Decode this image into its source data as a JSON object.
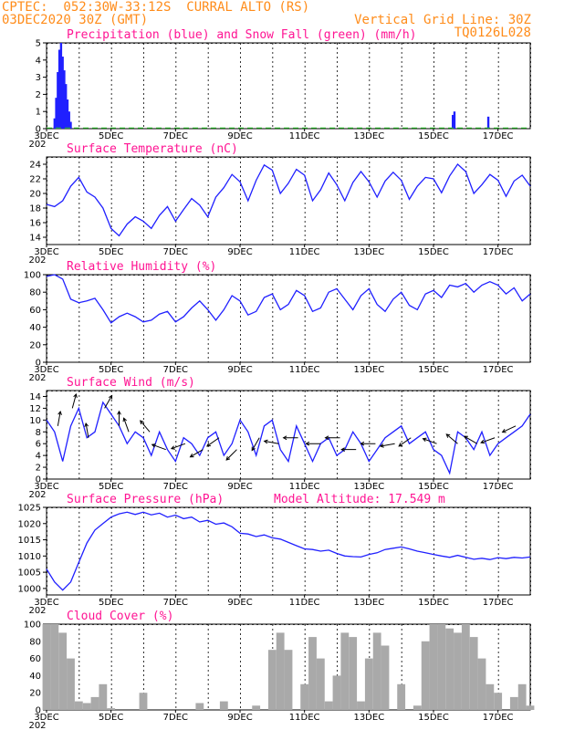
{
  "header": {
    "line1_left": "CPTEC:  052:30W-33:12S  CURRAL ALTO (RS)",
    "line2_left": "03DEC2020 30Z (GMT)",
    "line2_right": "Vertical Grid Line: 30Z",
    "line3_right": "TQ0126L028"
  },
  "x_axis": {
    "range_days": [
      3,
      18
    ],
    "tick_labels": [
      "3DEC",
      "5DEC",
      "7DEC",
      "9DEC",
      "11DEC",
      "13DEC",
      "15DEC",
      "17DEC"
    ],
    "tick_days": [
      3,
      5,
      7,
      9,
      11,
      13,
      15,
      17
    ],
    "year_stub": "202"
  },
  "colors": {
    "line": "#2020ff",
    "precip": "#2020ff",
    "snow": "#20c020",
    "cloud": "#a9a9a9",
    "arrow": "#000000",
    "title": "#ff1493",
    "header": "#ff8c1a"
  },
  "chart_data": [
    {
      "id": "precip",
      "type": "bar",
      "title": "Precipitation (blue) and Snow Fall (green) (mm/h)",
      "ylim": [
        0,
        5
      ],
      "yticks": [
        0,
        1,
        2,
        3,
        4,
        5
      ],
      "series": [
        {
          "name": "Precipitation",
          "x": [
            3.25,
            3.3,
            3.35,
            3.4,
            3.45,
            3.5,
            3.55,
            3.6,
            3.65,
            3.7,
            3.75,
            15.6,
            15.65,
            16.7
          ],
          "values": [
            0.6,
            1.8,
            3.3,
            4.6,
            5.0,
            4.2,
            3.4,
            2.6,
            1.7,
            1.0,
            0.4,
            0.8,
            1.0,
            0.7
          ]
        }
      ]
    },
    {
      "id": "temp",
      "type": "line",
      "title": "Surface Temperature (nC)",
      "ylim": [
        13,
        25
      ],
      "yticks": [
        14,
        16,
        18,
        20,
        22,
        24
      ],
      "x": [
        3.0,
        3.25,
        3.5,
        3.75,
        4.0,
        4.25,
        4.5,
        4.75,
        5.0,
        5.25,
        5.5,
        5.75,
        6.0,
        6.25,
        6.5,
        6.75,
        7.0,
        7.25,
        7.5,
        7.75,
        8.0,
        8.25,
        8.5,
        8.75,
        9.0,
        9.25,
        9.5,
        9.75,
        10.0,
        10.25,
        10.5,
        10.75,
        11.0,
        11.25,
        11.5,
        11.75,
        12.0,
        12.25,
        12.5,
        12.75,
        13.0,
        13.25,
        13.5,
        13.75,
        14.0,
        14.25,
        14.5,
        14.75,
        15.0,
        15.25,
        15.5,
        15.75,
        16.0,
        16.25,
        16.5,
        16.75,
        17.0,
        17.25,
        17.5,
        17.75,
        18.0
      ],
      "values": [
        18.5,
        18.2,
        19.0,
        21.0,
        22.2,
        20.2,
        19.5,
        18.0,
        15.2,
        14.2,
        15.8,
        16.8,
        16.2,
        15.2,
        17.0,
        18.2,
        16.2,
        17.8,
        19.3,
        18.4,
        16.8,
        19.5,
        20.8,
        22.6,
        21.6,
        19.0,
        21.8,
        23.9,
        23.2,
        20.0,
        21.4,
        23.3,
        22.5,
        19.0,
        20.5,
        22.8,
        21.2,
        19.0,
        21.5,
        23.0,
        21.6,
        19.5,
        21.7,
        22.9,
        21.8,
        19.2,
        21.0,
        22.2,
        22.0,
        20.1,
        22.4,
        24.0,
        23.0,
        20.0,
        21.2,
        22.6,
        21.8,
        19.6,
        21.7,
        22.5,
        21.0
      ]
    },
    {
      "id": "rh",
      "type": "line",
      "title": "Relative Humidity (%)",
      "ylim": [
        0,
        100
      ],
      "yticks": [
        0,
        20,
        40,
        60,
        80,
        100
      ],
      "x": [
        3.0,
        3.25,
        3.5,
        3.75,
        4.0,
        4.25,
        4.5,
        4.75,
        5.0,
        5.25,
        5.5,
        5.75,
        6.0,
        6.25,
        6.5,
        6.75,
        7.0,
        7.25,
        7.5,
        7.75,
        8.0,
        8.25,
        8.5,
        8.75,
        9.0,
        9.25,
        9.5,
        9.75,
        10.0,
        10.25,
        10.5,
        10.75,
        11.0,
        11.25,
        11.5,
        11.75,
        12.0,
        12.25,
        12.5,
        12.75,
        13.0,
        13.25,
        13.5,
        13.75,
        14.0,
        14.25,
        14.5,
        14.75,
        15.0,
        15.25,
        15.5,
        15.75,
        16.0,
        16.25,
        16.5,
        16.75,
        17.0,
        17.25,
        17.5,
        17.75,
        18.0
      ],
      "values": [
        98,
        100,
        95,
        72,
        68,
        70,
        73,
        60,
        45,
        52,
        56,
        52,
        46,
        48,
        55,
        58,
        46,
        52,
        62,
        70,
        60,
        48,
        60,
        76,
        70,
        54,
        58,
        74,
        78,
        60,
        66,
        82,
        76,
        58,
        62,
        80,
        84,
        72,
        60,
        76,
        84,
        66,
        58,
        72,
        80,
        65,
        60,
        78,
        82,
        74,
        88,
        86,
        90,
        80,
        88,
        92,
        88,
        78,
        85,
        70,
        78
      ]
    },
    {
      "id": "wind",
      "type": "line",
      "title": "Surface Wind (m/s)",
      "ylim": [
        0,
        15
      ],
      "yticks": [
        0,
        2,
        4,
        6,
        8,
        10,
        12,
        14
      ],
      "x": [
        3.0,
        3.25,
        3.5,
        3.75,
        4.0,
        4.25,
        4.5,
        4.75,
        5.0,
        5.25,
        5.5,
        5.75,
        6.0,
        6.25,
        6.5,
        6.75,
        7.0,
        7.25,
        7.5,
        7.75,
        8.0,
        8.25,
        8.5,
        8.75,
        9.0,
        9.25,
        9.5,
        9.75,
        10.0,
        10.25,
        10.5,
        10.75,
        11.0,
        11.25,
        11.5,
        11.75,
        12.0,
        12.25,
        12.5,
        12.75,
        13.0,
        13.25,
        13.5,
        13.75,
        14.0,
        14.25,
        14.5,
        14.75,
        15.0,
        15.25,
        15.5,
        15.75,
        16.0,
        16.25,
        16.5,
        16.75,
        17.0,
        17.25,
        17.5,
        17.75,
        18.0
      ],
      "values": [
        10,
        8,
        3,
        9,
        12,
        7,
        8,
        13,
        11,
        9,
        6,
        8,
        7,
        4,
        8,
        5,
        3,
        7,
        6,
        4,
        7,
        8,
        4,
        6,
        10,
        8,
        4,
        9,
        10,
        5,
        3,
        9,
        6,
        3,
        6,
        7,
        4,
        5,
        8,
        6,
        3,
        5,
        7,
        8,
        9,
        6,
        7,
        8,
        5,
        4,
        1,
        8,
        7,
        5,
        8,
        4,
        6,
        7,
        8,
        9,
        11
      ]
    },
    {
      "id": "pressure",
      "type": "line",
      "title": "Surface Pressure (hPa)",
      "subtitle": "Model Altitude: 17.549 m",
      "ylim": [
        998,
        1025
      ],
      "yticks": [
        1000,
        1005,
        1010,
        1015,
        1020,
        1025
      ],
      "x": [
        3.0,
        3.25,
        3.5,
        3.75,
        4.0,
        4.25,
        4.5,
        4.75,
        5.0,
        5.25,
        5.5,
        5.75,
        6.0,
        6.25,
        6.5,
        6.75,
        7.0,
        7.25,
        7.5,
        7.75,
        8.0,
        8.25,
        8.5,
        8.75,
        9.0,
        9.25,
        9.5,
        9.75,
        10.0,
        10.25,
        10.5,
        10.75,
        11.0,
        11.25,
        11.5,
        11.75,
        12.0,
        12.25,
        12.5,
        12.75,
        13.0,
        13.25,
        13.5,
        13.75,
        14.0,
        14.25,
        14.5,
        14.75,
        15.0,
        15.25,
        15.5,
        15.75,
        16.0,
        16.25,
        16.5,
        16.75,
        17.0,
        17.25,
        17.5,
        17.75,
        18.0
      ],
      "values": [
        1006,
        1002,
        999.5,
        1002,
        1008,
        1014,
        1018,
        1020,
        1022,
        1023,
        1023.5,
        1022.8,
        1023.5,
        1022.7,
        1023.2,
        1022,
        1022.6,
        1021.5,
        1022,
        1020.5,
        1021,
        1019.8,
        1020.2,
        1019,
        1017,
        1016.8,
        1016,
        1016.5,
        1015.6,
        1015.2,
        1014.2,
        1013.2,
        1012.2,
        1012,
        1011.5,
        1011.8,
        1010.8,
        1010,
        1009.8,
        1009.7,
        1010.5,
        1011,
        1012,
        1012.4,
        1012.8,
        1012.2,
        1011.5,
        1011,
        1010.5,
        1010,
        1009.6,
        1010.2,
        1009.6,
        1009,
        1009.3,
        1008.9,
        1009.5,
        1009.2,
        1009.6,
        1009.4,
        1009.7
      ]
    },
    {
      "id": "cloud",
      "type": "area",
      "title": "Cloud Cover (%)",
      "ylim": [
        0,
        100
      ],
      "yticks": [
        0,
        20,
        40,
        60,
        80,
        100
      ],
      "x": [
        3.0,
        3.25,
        3.5,
        3.75,
        4.0,
        4.25,
        4.5,
        4.75,
        5.0,
        5.25,
        5.5,
        5.75,
        6.0,
        6.25,
        6.5,
        6.75,
        7.0,
        7.25,
        7.5,
        7.75,
        8.0,
        8.25,
        8.5,
        8.75,
        9.0,
        9.25,
        9.5,
        9.75,
        10.0,
        10.25,
        10.5,
        10.75,
        11.0,
        11.25,
        11.5,
        11.75,
        12.0,
        12.25,
        12.5,
        12.75,
        13.0,
        13.25,
        13.5,
        13.75,
        14.0,
        14.25,
        14.5,
        14.75,
        15.0,
        15.25,
        15.5,
        15.75,
        16.0,
        16.25,
        16.5,
        16.75,
        17.0,
        17.25,
        17.5,
        17.75,
        18.0
      ],
      "values": [
        100,
        100,
        90,
        60,
        10,
        8,
        15,
        30,
        2,
        0,
        0,
        0,
        20,
        0,
        0,
        0,
        0,
        0,
        0,
        8,
        0,
        0,
        10,
        0,
        0,
        0,
        5,
        0,
        70,
        90,
        70,
        0,
        30,
        85,
        60,
        10,
        40,
        90,
        85,
        10,
        60,
        90,
        75,
        0,
        30,
        0,
        5,
        80,
        100,
        100,
        95,
        90,
        100,
        85,
        60,
        30,
        20,
        0,
        15,
        30,
        5
      ]
    }
  ],
  "wind_arrows": [
    {
      "day": 3.35,
      "speed": 9,
      "dir_deg": 80
    },
    {
      "day": 3.8,
      "speed": 12,
      "dir_deg": 75
    },
    {
      "day": 4.3,
      "speed": 7,
      "dir_deg": 100
    },
    {
      "day": 4.8,
      "speed": 12,
      "dir_deg": 60
    },
    {
      "day": 5.25,
      "speed": 9,
      "dir_deg": 90
    },
    {
      "day": 5.55,
      "speed": 8,
      "dir_deg": 110
    },
    {
      "day": 6.2,
      "speed": 8,
      "dir_deg": 130
    },
    {
      "day": 6.7,
      "speed": 5,
      "dir_deg": 160
    },
    {
      "day": 7.3,
      "speed": 6,
      "dir_deg": 200
    },
    {
      "day": 7.85,
      "speed": 5,
      "dir_deg": 210
    },
    {
      "day": 8.35,
      "speed": 7,
      "dir_deg": 215
    },
    {
      "day": 8.9,
      "speed": 5,
      "dir_deg": 225
    },
    {
      "day": 9.6,
      "speed": 7,
      "dir_deg": 240
    },
    {
      "day": 10.2,
      "speed": 6,
      "dir_deg": 170
    },
    {
      "day": 10.8,
      "speed": 7,
      "dir_deg": 180
    },
    {
      "day": 11.5,
      "speed": 6,
      "dir_deg": 180
    },
    {
      "day": 12.1,
      "speed": 7,
      "dir_deg": 180
    },
    {
      "day": 12.6,
      "speed": 5,
      "dir_deg": 180
    },
    {
      "day": 13.2,
      "speed": 6,
      "dir_deg": 180
    },
    {
      "day": 13.8,
      "speed": 6,
      "dir_deg": 190
    },
    {
      "day": 14.3,
      "speed": 7,
      "dir_deg": 215
    },
    {
      "day": 15.1,
      "speed": 6,
      "dir_deg": 160
    },
    {
      "day": 15.75,
      "speed": 6,
      "dir_deg": 140
    },
    {
      "day": 16.35,
      "speed": 6,
      "dir_deg": 150
    },
    {
      "day": 16.9,
      "speed": 7,
      "dir_deg": 200
    },
    {
      "day": 17.55,
      "speed": 9,
      "dir_deg": 205
    }
  ]
}
